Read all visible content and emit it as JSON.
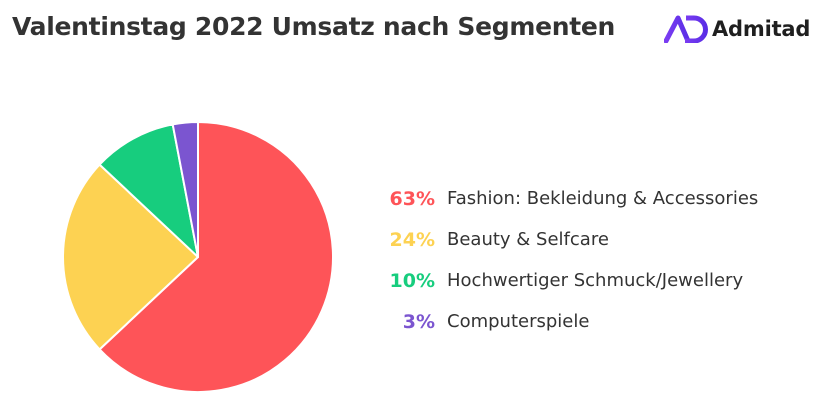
{
  "header": {
    "title": "Valentinstag 2022 Umsatz nach Segmenten",
    "brand_name": "Admitad",
    "brand_color": "#6c38f0",
    "brand_icon": "admitad-logo-icon"
  },
  "chart_data": {
    "type": "pie",
    "title": "Valentinstag 2022 Umsatz nach Segmenten",
    "legend_position": "right",
    "slices": [
      {
        "label": "Fashion: Bekleidung & Accessories",
        "value": 63,
        "value_label": "63%",
        "color": "#fe5458"
      },
      {
        "label": "Beauty & Selfcare",
        "value": 24,
        "value_label": "24%",
        "color": "#fdd252"
      },
      {
        "label": "Hochwertiger Schmuck/Jewellery",
        "value": 10,
        "value_label": "10%",
        "color": "#17cd7e"
      },
      {
        "label": "Computerspiele",
        "value": 3,
        "value_label": "3%",
        "color": "#7b55d0"
      }
    ]
  }
}
